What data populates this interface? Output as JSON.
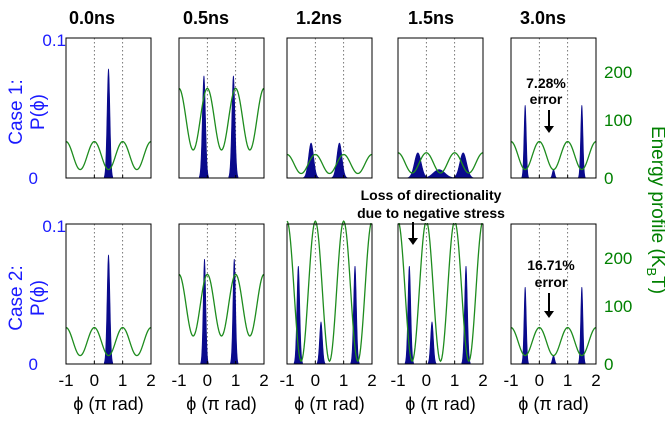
{
  "figure": {
    "col_titles": [
      "0.0ns",
      "0.5ns",
      "1.2ns",
      "1.5ns",
      "3.0ns"
    ],
    "xlabel": "ϕ (π rad)",
    "left_axis_label": "P(ϕ)",
    "right_axis_label": "Energy profile (K",
    "right_axis_label_sub": "B",
    "right_axis_label_end": "T)",
    "case_labels": [
      "Case 1:",
      "Case 2:"
    ],
    "left_ticks": [
      "0",
      "0.1"
    ],
    "right_ticks": [
      "0",
      "100",
      "200"
    ],
    "x_ticks": [
      "-1",
      "0",
      "1",
      "2"
    ],
    "annotations": {
      "case1_error": [
        "7.28%",
        "error"
      ],
      "case2_error": [
        "16.71%",
        "error"
      ],
      "loss": [
        "Loss of directionality",
        "due to negative stress"
      ]
    }
  },
  "colors": {
    "left_axis": "#1a1aff",
    "right_axis": "#008000",
    "histogram": "#0a0a8c",
    "energy": "#1e8c1e"
  },
  "chart_data": {
    "type": "bar",
    "x_range": [
      -1,
      2
    ],
    "left_ylim": [
      0,
      0.1
    ],
    "right_ylim": [
      0,
      250
    ],
    "grid": "vertical dotted at 0 and 1",
    "panels": [
      {
        "case": 1,
        "time": "0.0ns",
        "energy_mean": 40,
        "energy_amp": 25,
        "energy_period": 1,
        "peaks": [
          {
            "x": 0.5,
            "h": 0.078,
            "w": 0.05
          }
        ]
      },
      {
        "case": 1,
        "time": "0.5ns",
        "energy_mean": 105,
        "energy_amp": 55,
        "energy_period": 1,
        "peaks": [
          {
            "x": -0.12,
            "h": 0.073,
            "w": 0.055
          },
          {
            "x": 0.92,
            "h": 0.073,
            "w": 0.055
          }
        ]
      },
      {
        "case": 1,
        "time": "1.2ns",
        "energy_mean": 25,
        "energy_amp": 17,
        "energy_period": 1,
        "peaks": [
          {
            "x": -0.15,
            "h": 0.025,
            "w": 0.09
          },
          {
            "x": 0.85,
            "h": 0.025,
            "w": 0.09
          }
        ]
      },
      {
        "case": 1,
        "time": "1.5ns",
        "energy_mean": 27,
        "energy_amp": 18,
        "energy_period": 1,
        "peaks": [
          {
            "x": -0.3,
            "h": 0.018,
            "w": 0.12
          },
          {
            "x": 0.45,
            "h": 0.006,
            "w": 0.2
          },
          {
            "x": 1.3,
            "h": 0.018,
            "w": 0.12
          }
        ]
      },
      {
        "case": 1,
        "time": "3.0ns",
        "energy_mean": 40,
        "energy_amp": 25,
        "energy_period": 1,
        "peaks": [
          {
            "x": -0.5,
            "h": 0.052,
            "w": 0.04
          },
          {
            "x": 0.5,
            "h": 0.006,
            "w": 0.04
          },
          {
            "x": 1.5,
            "h": 0.052,
            "w": 0.04
          }
        ]
      },
      {
        "case": 2,
        "time": "0.0ns",
        "energy_mean": 40,
        "energy_amp": 25,
        "energy_period": 1,
        "peaks": [
          {
            "x": 0.5,
            "h": 0.078,
            "w": 0.05
          }
        ]
      },
      {
        "case": 2,
        "time": "0.5ns",
        "energy_mean": 105,
        "energy_amp": 55,
        "energy_period": 1,
        "peaks": [
          {
            "x": -0.1,
            "h": 0.075,
            "w": 0.045
          },
          {
            "x": 0.95,
            "h": 0.075,
            "w": 0.045
          }
        ]
      },
      {
        "case": 2,
        "time": "1.2ns",
        "energy_mean": 130,
        "energy_amp": 125,
        "energy_period": 1,
        "peaks": [
          {
            "x": -0.6,
            "h": 0.07,
            "w": 0.05
          },
          {
            "x": 0.2,
            "h": 0.03,
            "w": 0.05
          },
          {
            "x": 1.4,
            "h": 0.07,
            "w": 0.05
          }
        ]
      },
      {
        "case": 2,
        "time": "1.5ns",
        "energy_mean": 130,
        "energy_amp": 125,
        "energy_period": 1,
        "peaks": [
          {
            "x": -0.6,
            "h": 0.07,
            "w": 0.05
          },
          {
            "x": 0.2,
            "h": 0.03,
            "w": 0.05
          },
          {
            "x": 1.4,
            "h": 0.07,
            "w": 0.05
          }
        ]
      },
      {
        "case": 2,
        "time": "3.0ns",
        "energy_mean": 40,
        "energy_amp": 25,
        "energy_period": 1,
        "peaks": [
          {
            "x": -0.5,
            "h": 0.055,
            "w": 0.04
          },
          {
            "x": 0.5,
            "h": 0.006,
            "w": 0.04
          },
          {
            "x": 1.5,
            "h": 0.055,
            "w": 0.04
          }
        ]
      }
    ]
  }
}
